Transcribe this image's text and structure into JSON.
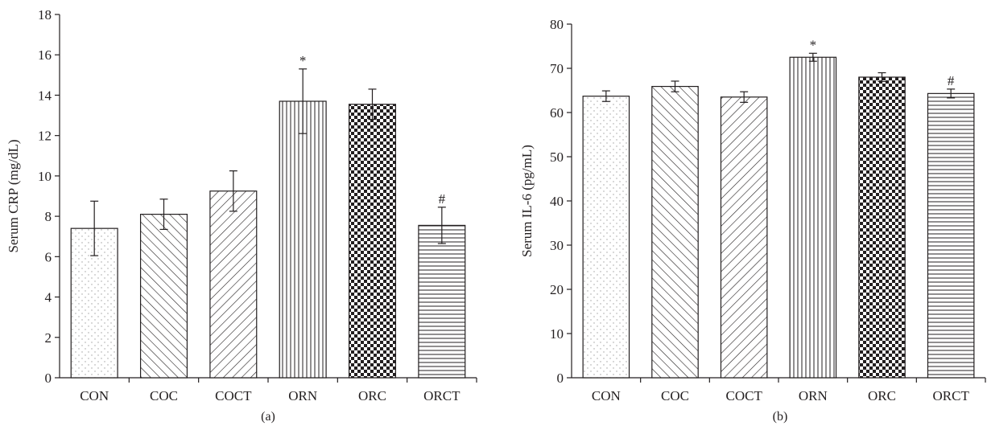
{
  "chart_data": [
    {
      "type": "bar",
      "panel_label": "(a)",
      "ylabel": "Serum CRP (mg/dL)",
      "xlabel": "",
      "title": "",
      "ylim": [
        0,
        18
      ],
      "yticks": [
        "0",
        "2",
        "4",
        "6",
        "8",
        "10",
        "12",
        "14",
        "16",
        "18"
      ],
      "categories": [
        "CON",
        "COC",
        "COCT",
        "ORN",
        "ORC",
        "ORCT"
      ],
      "values": [
        7.4,
        8.1,
        9.25,
        13.7,
        13.55,
        7.55
      ],
      "errors": [
        1.35,
        0.75,
        1.0,
        1.6,
        0.75,
        0.9
      ],
      "annotations": [
        "",
        "",
        "",
        "*",
        "",
        "#"
      ],
      "patterns": [
        "dots",
        "diag-back",
        "diag-fwd",
        "vertical",
        "checker",
        "horizontal"
      ],
      "grid": false,
      "legend": "none"
    },
    {
      "type": "bar",
      "panel_label": "(b)",
      "ylabel": "Serum IL-6 (pg/mL)",
      "xlabel": "",
      "title": "",
      "ylim": [
        0,
        80
      ],
      "yticks": [
        "0",
        "10",
        "20",
        "30",
        "40",
        "50",
        "60",
        "70",
        "80"
      ],
      "categories": [
        "CON",
        "COC",
        "COCT",
        "ORN",
        "ORC",
        "ORCT"
      ],
      "values": [
        63.7,
        65.9,
        63.5,
        72.5,
        68.0,
        64.3
      ],
      "errors": [
        1.2,
        1.2,
        1.2,
        0.9,
        1.0,
        1.0
      ],
      "annotations": [
        "",
        "",
        "",
        "*",
        "",
        "#"
      ],
      "patterns": [
        "dots",
        "diag-back",
        "diag-fwd",
        "vertical",
        "checker",
        "horizontal"
      ],
      "grid": false,
      "legend": "none"
    }
  ],
  "colors": {
    "ink": "#231f20",
    "bar_fill": "#ffffff",
    "dots": "#9a9a9a"
  }
}
